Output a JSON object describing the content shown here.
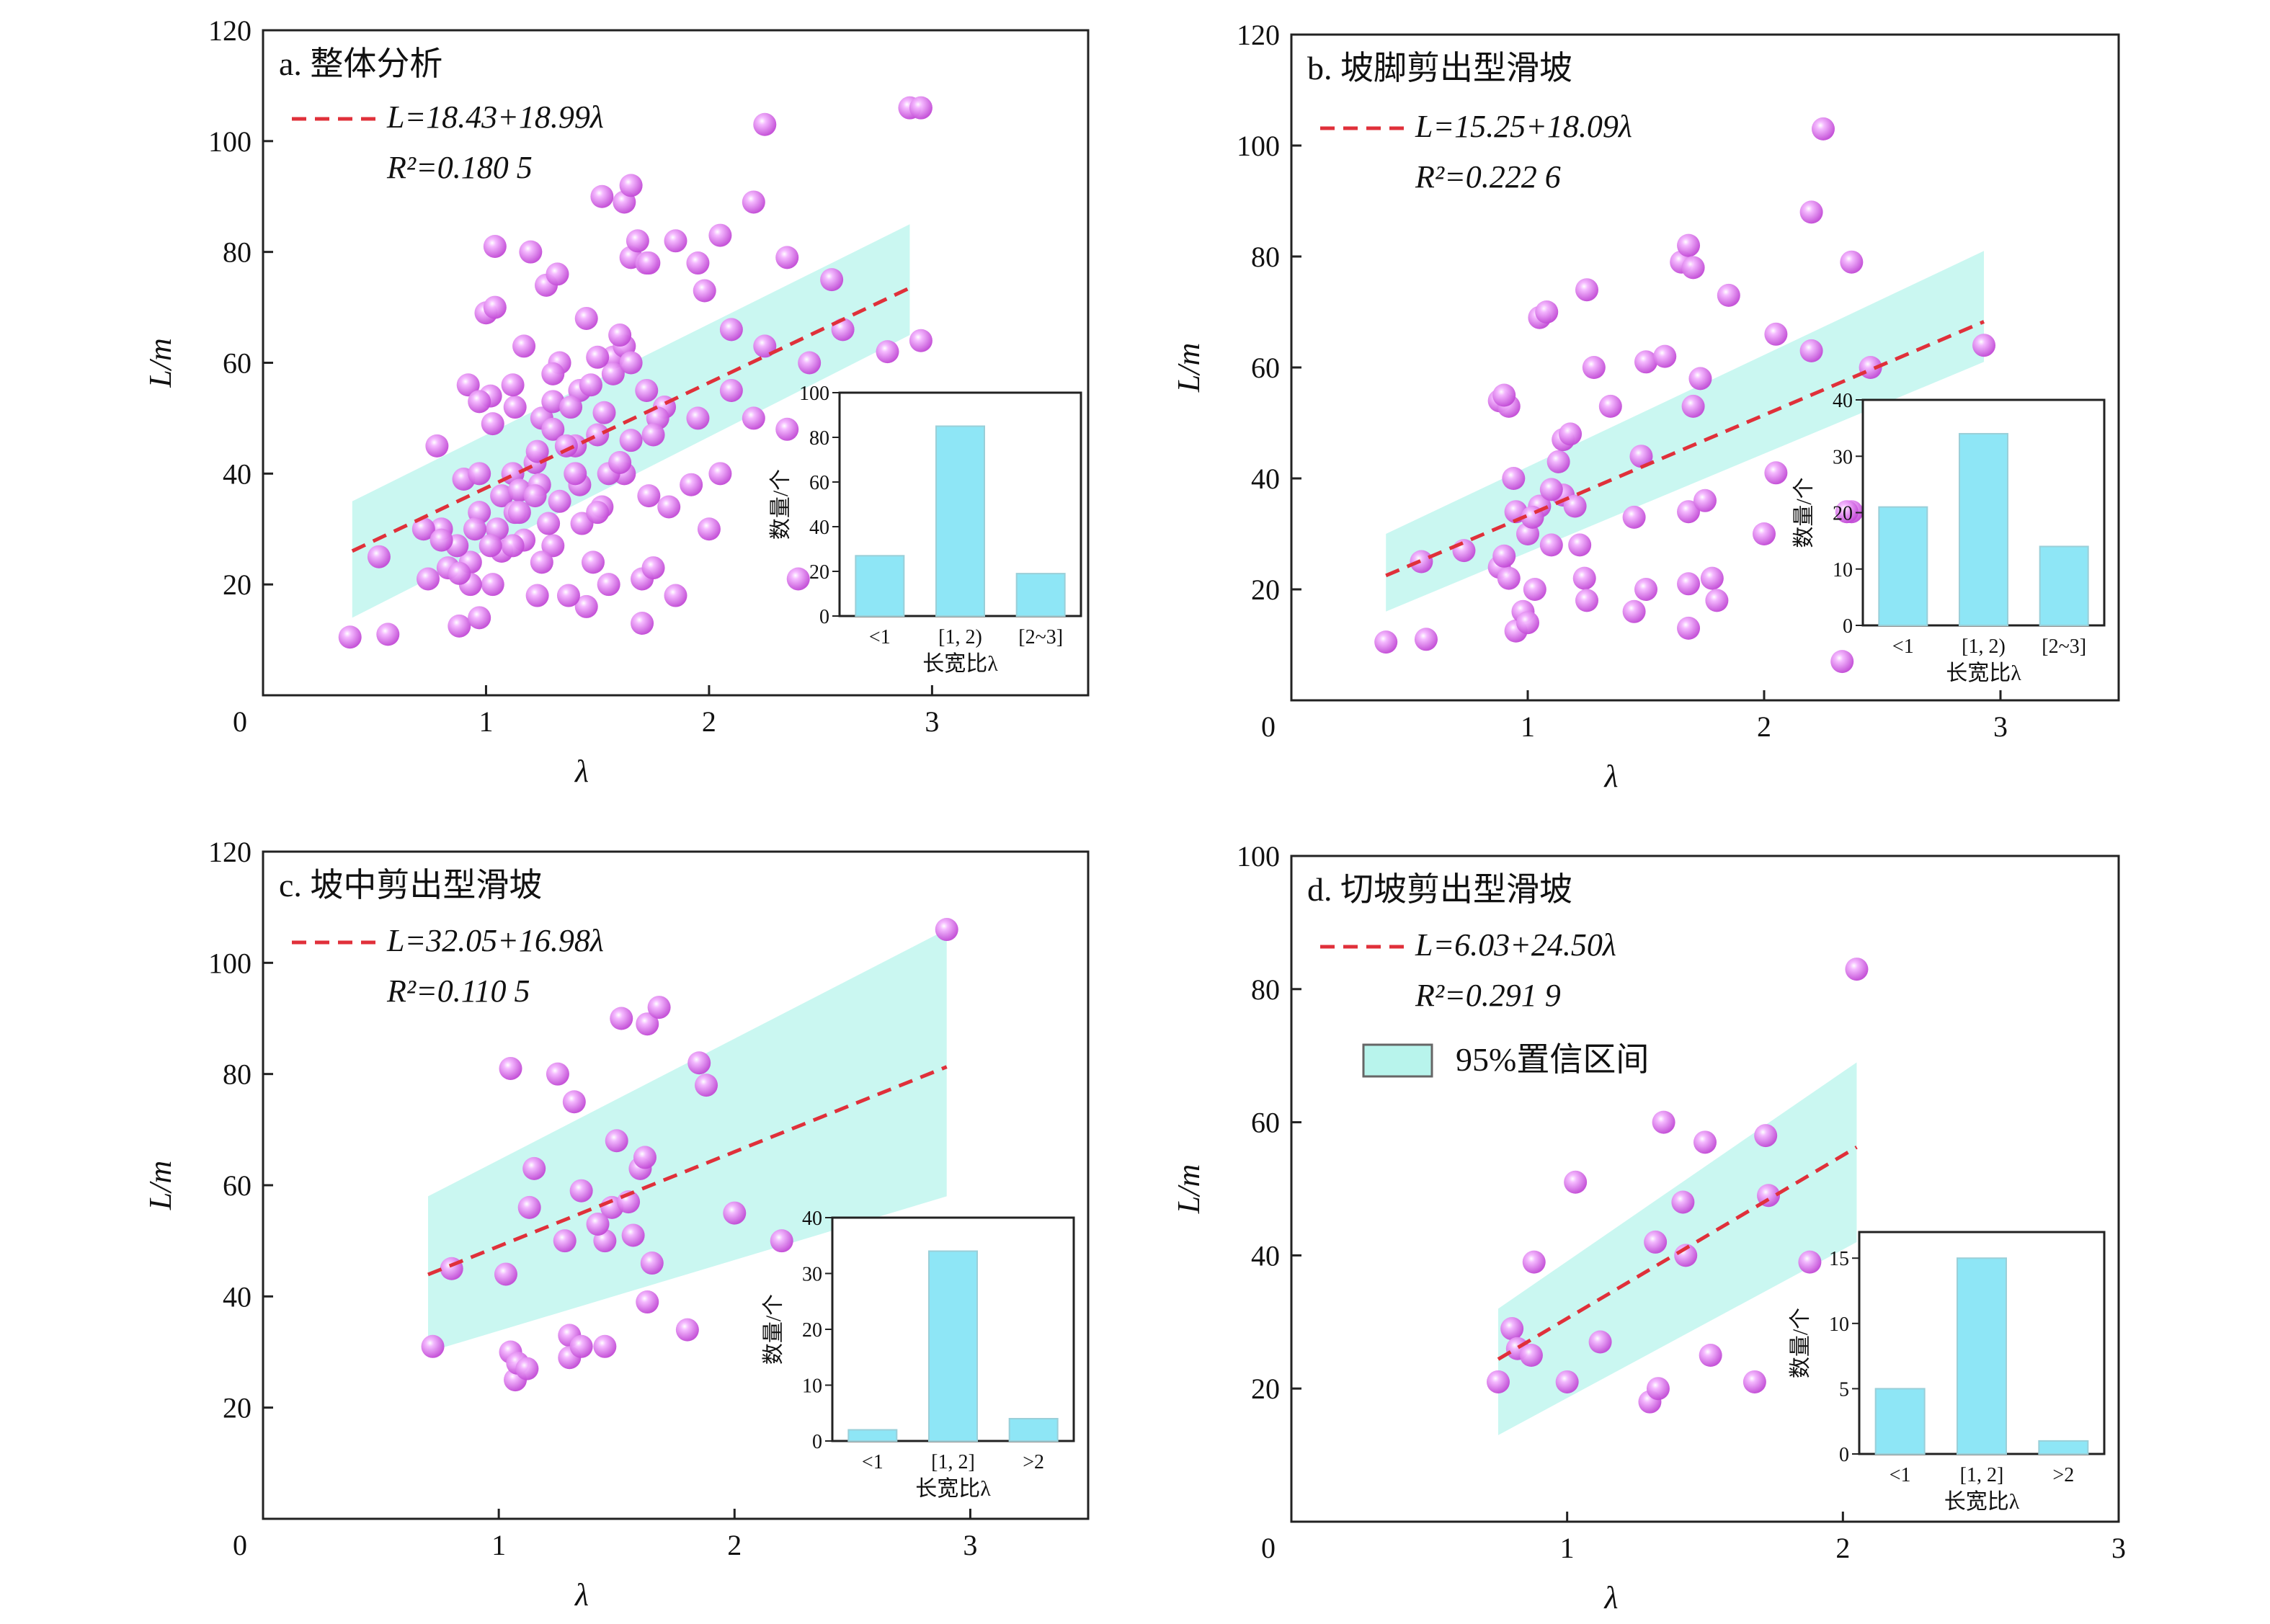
{
  "colors": {
    "point": "#e070f0",
    "point_highlight": "#f7d9ff",
    "fit_line": "#e0303a",
    "band": "#b8f4ec",
    "bar": "#8ee6f6",
    "axis": "#222222"
  },
  "legend": {
    "band_label": "95%置信区间"
  },
  "chart_data": [
    {
      "type": "scatter",
      "title": "a. 整体分析",
      "xlabel": "λ",
      "ylabel": "L/m",
      "xlim": [
        0,
        3.7
      ],
      "ylim": [
        0,
        120
      ],
      "xticks": [
        1,
        2,
        3
      ],
      "yticks": [
        20,
        40,
        60,
        80,
        100,
        120
      ],
      "origin_label": "0",
      "fit": {
        "intercept": 18.43,
        "slope": 18.99,
        "r2": "0.180 5",
        "eq_text": "L=18.43+18.99λ",
        "r2_text": "R²=0.180 5",
        "x_range": [
          0.4,
          2.9
        ]
      },
      "band": {
        "x_range": [
          0.4,
          2.9
        ],
        "lower": [
          14,
          65
        ],
        "upper": [
          35,
          85
        ]
      },
      "points": [
        [
          0.39,
          10.5
        ],
        [
          0.56,
          11
        ],
        [
          0.52,
          25
        ],
        [
          0.88,
          12.5
        ],
        [
          0.97,
          14
        ],
        [
          0.74,
          21
        ],
        [
          0.83,
          23
        ],
        [
          0.93,
          24
        ],
        [
          1.03,
          20
        ],
        [
          0.8,
          30
        ],
        [
          0.87,
          27
        ],
        [
          0.97,
          33
        ],
        [
          1.07,
          26
        ],
        [
          1.17,
          28
        ],
        [
          0.72,
          30
        ],
        [
          0.9,
          39
        ],
        [
          0.97,
          40
        ],
        [
          1.12,
          40
        ],
        [
          1.22,
          42
        ],
        [
          0.78,
          45
        ],
        [
          1.03,
          49
        ],
        [
          1.13,
          52
        ],
        [
          0.92,
          56
        ],
        [
          1.02,
          54
        ],
        [
          0.97,
          53
        ],
        [
          1.12,
          56
        ],
        [
          1.25,
          50
        ],
        [
          1.3,
          53
        ],
        [
          1.42,
          55
        ],
        [
          1.53,
          51
        ],
        [
          1.47,
          56
        ],
        [
          1.57,
          61
        ],
        [
          1.62,
          63
        ],
        [
          1.57,
          58
        ],
        [
          1.65,
          60
        ],
        [
          1.33,
          60
        ],
        [
          1.17,
          63
        ],
        [
          1.45,
          68
        ],
        [
          1.6,
          65
        ],
        [
          1.27,
          74
        ],
        [
          1.32,
          76
        ],
        [
          1.0,
          69
        ],
        [
          1.04,
          70
        ],
        [
          1.04,
          81
        ],
        [
          1.2,
          80
        ],
        [
          1.65,
          79
        ],
        [
          1.72,
          78
        ],
        [
          1.68,
          82
        ],
        [
          1.73,
          78
        ],
        [
          1.85,
          82
        ],
        [
          1.98,
          73
        ],
        [
          1.95,
          78
        ],
        [
          2.05,
          83
        ],
        [
          2.35,
          79
        ],
        [
          2.2,
          89
        ],
        [
          1.52,
          90
        ],
        [
          1.62,
          89
        ],
        [
          1.65,
          92
        ],
        [
          2.25,
          103
        ],
        [
          2.9,
          106
        ],
        [
          1.07,
          36
        ],
        [
          1.15,
          37
        ],
        [
          1.24,
          38
        ],
        [
          1.33,
          35
        ],
        [
          1.42,
          38
        ],
        [
          1.52,
          34
        ],
        [
          1.62,
          40
        ],
        [
          1.73,
          36
        ],
        [
          1.82,
          34
        ],
        [
          1.92,
          38
        ],
        [
          2.05,
          40
        ],
        [
          1.23,
          44
        ],
        [
          1.3,
          48
        ],
        [
          1.4,
          45
        ],
        [
          1.5,
          47
        ],
        [
          1.65,
          46
        ],
        [
          1.8,
          52
        ],
        [
          1.95,
          50
        ],
        [
          2.1,
          55
        ],
        [
          2.2,
          50
        ],
        [
          2.35,
          48
        ],
        [
          2.45,
          60
        ],
        [
          2.6,
          66
        ],
        [
          2.8,
          62
        ],
        [
          2.95,
          64
        ],
        [
          2.0,
          30
        ],
        [
          2.4,
          21
        ],
        [
          2.55,
          75
        ],
        [
          1.45,
          16
        ],
        [
          1.37,
          18
        ],
        [
          1.23,
          18
        ],
        [
          1.55,
          20
        ],
        [
          1.7,
          21
        ],
        [
          1.75,
          23
        ],
        [
          1.85,
          18
        ],
        [
          1.7,
          13
        ],
        [
          1.48,
          24
        ],
        [
          1.3,
          27
        ],
        [
          1.25,
          24
        ],
        [
          1.12,
          27
        ],
        [
          1.05,
          30
        ],
        [
          1.13,
          33
        ],
        [
          1.22,
          36
        ],
        [
          1.4,
          40
        ],
        [
          0.93,
          20
        ],
        [
          0.88,
          22
        ],
        [
          1.02,
          27
        ],
        [
          0.95,
          30
        ],
        [
          1.15,
          33
        ],
        [
          1.28,
          31
        ],
        [
          1.36,
          45
        ],
        [
          1.43,
          31
        ],
        [
          1.5,
          33
        ],
        [
          1.55,
          40
        ],
        [
          1.77,
          50
        ],
        [
          1.3,
          58
        ],
        [
          1.38,
          52
        ],
        [
          1.5,
          61
        ],
        [
          1.72,
          55
        ],
        [
          2.1,
          66
        ],
        [
          2.25,
          63
        ],
        [
          1.6,
          42
        ],
        [
          1.75,
          47
        ],
        [
          0.8,
          28
        ],
        [
          2.95,
          106
        ]
      ]
    },
    {
      "type": "scatter",
      "title": "b. 坡脚剪出型滑坡",
      "xlabel": "λ",
      "ylabel": "L/m",
      "xlim": [
        0,
        3.5
      ],
      "ylim": [
        0,
        120
      ],
      "xticks": [
        1,
        2,
        3
      ],
      "yticks": [
        20,
        40,
        60,
        80,
        100,
        120
      ],
      "origin_label": "0",
      "fit": {
        "intercept": 15.25,
        "slope": 18.09,
        "r2": "0.222 6",
        "eq_text": "L=15.25+18.09λ",
        "r2_text": "R²=0.222 6",
        "x_range": [
          0.4,
          2.93
        ]
      },
      "band": {
        "x_range": [
          0.4,
          2.93
        ],
        "lower": [
          16,
          61
        ],
        "upper": [
          30,
          81
        ]
      },
      "points": [
        [
          0.4,
          10.5
        ],
        [
          0.57,
          11
        ],
        [
          0.55,
          25
        ],
        [
          0.73,
          27
        ],
        [
          0.88,
          24
        ],
        [
          0.92,
          22
        ],
        [
          0.95,
          12.5
        ],
        [
          0.98,
          16
        ],
        [
          1.0,
          14
        ],
        [
          1.03,
          20
        ],
        [
          0.9,
          26
        ],
        [
          0.95,
          34
        ],
        [
          1.0,
          30
        ],
        [
          1.05,
          35
        ],
        [
          1.1,
          28
        ],
        [
          1.15,
          37
        ],
        [
          1.2,
          35
        ],
        [
          1.22,
          28
        ],
        [
          1.24,
          22
        ],
        [
          0.94,
          40
        ],
        [
          1.13,
          43
        ],
        [
          1.15,
          47
        ],
        [
          0.88,
          54
        ],
        [
          0.92,
          53
        ],
        [
          0.9,
          55
        ],
        [
          1.05,
          69
        ],
        [
          1.08,
          70
        ],
        [
          1.25,
          74
        ],
        [
          1.35,
          53
        ],
        [
          1.5,
          61
        ],
        [
          1.58,
          62
        ],
        [
          1.7,
          53
        ],
        [
          1.73,
          58
        ],
        [
          1.65,
          79
        ],
        [
          1.68,
          82
        ],
        [
          1.7,
          78
        ],
        [
          1.85,
          73
        ],
        [
          2.05,
          66
        ],
        [
          2.2,
          63
        ],
        [
          2.2,
          88
        ],
        [
          2.25,
          103
        ],
        [
          2.37,
          79
        ],
        [
          2.45,
          60
        ],
        [
          2.37,
          34
        ],
        [
          2.33,
          7
        ],
        [
          2.35,
          34
        ],
        [
          2.93,
          64
        ],
        [
          1.5,
          20
        ],
        [
          1.45,
          16
        ],
        [
          1.25,
          18
        ],
        [
          1.68,
          21
        ],
        [
          1.78,
          22
        ],
        [
          1.8,
          18
        ],
        [
          1.68,
          13
        ],
        [
          1.45,
          33
        ],
        [
          1.48,
          44
        ],
        [
          1.68,
          34
        ],
        [
          1.75,
          36
        ],
        [
          2.0,
          30
        ],
        [
          2.05,
          41
        ],
        [
          1.28,
          60
        ],
        [
          1.02,
          33
        ],
        [
          1.1,
          38
        ],
        [
          1.18,
          48
        ]
      ]
    },
    {
      "type": "scatter",
      "title": "c. 坡中剪出型滑坡",
      "xlabel": "λ",
      "ylabel": "L/m",
      "xlim": [
        0,
        3.5
      ],
      "ylim": [
        0,
        120
      ],
      "xticks": [
        1,
        2,
        3
      ],
      "yticks": [
        20,
        40,
        60,
        80,
        100,
        120
      ],
      "origin_label": "0",
      "fit": {
        "intercept": 32.05,
        "slope": 16.98,
        "r2": "0.110 5",
        "eq_text": "L=32.05+16.98λ",
        "r2_text": "R²=0.110 5",
        "x_range": [
          0.7,
          2.9
        ]
      },
      "band": {
        "x_range": [
          0.7,
          2.9
        ],
        "lower": [
          30,
          58
        ],
        "upper": [
          58,
          106
        ]
      },
      "points": [
        [
          0.72,
          31
        ],
        [
          0.8,
          45
        ],
        [
          1.03,
          44
        ],
        [
          1.05,
          30
        ],
        [
          1.07,
          25
        ],
        [
          1.08,
          28
        ],
        [
          1.12,
          27
        ],
        [
          1.05,
          81
        ],
        [
          1.15,
          63
        ],
        [
          1.13,
          56
        ],
        [
          1.25,
          80
        ],
        [
          1.3,
          33
        ],
        [
          1.3,
          29
        ],
        [
          1.35,
          31
        ],
        [
          1.28,
          50
        ],
        [
          1.32,
          75
        ],
        [
          1.35,
          59
        ],
        [
          1.45,
          50
        ],
        [
          1.45,
          31
        ],
        [
          1.48,
          56
        ],
        [
          1.5,
          68
        ],
        [
          1.52,
          90
        ],
        [
          1.57,
          51
        ],
        [
          1.6,
          63
        ],
        [
          1.62,
          65
        ],
        [
          1.63,
          89
        ],
        [
          1.65,
          46
        ],
        [
          1.63,
          39
        ],
        [
          1.68,
          92
        ],
        [
          1.8,
          34
        ],
        [
          1.85,
          82
        ],
        [
          1.88,
          78
        ],
        [
          2.0,
          55
        ],
        [
          2.2,
          50
        ],
        [
          2.9,
          106
        ],
        [
          1.55,
          57
        ],
        [
          1.42,
          53
        ]
      ]
    },
    {
      "type": "scatter",
      "title": "d. 切坡剪出型滑坡",
      "xlabel": "λ",
      "ylabel": "L/m",
      "xlim": [
        0,
        3
      ],
      "ylim": [
        0,
        100
      ],
      "xticks": [
        1,
        2,
        3
      ],
      "yticks": [
        20,
        40,
        60,
        80,
        100
      ],
      "origin_label": "0",
      "fit": {
        "intercept": 6.03,
        "slope": 24.5,
        "r2": "0.291 9",
        "eq_text": "L=6.03+24.50λ",
        "r2_text": "R²=0.291 9",
        "x_range": [
          0.75,
          2.05
        ]
      },
      "band": {
        "x_range": [
          0.75,
          2.05
        ],
        "lower": [
          13,
          42
        ],
        "upper": [
          32,
          69
        ]
      },
      "points": [
        [
          0.75,
          21
        ],
        [
          0.8,
          29
        ],
        [
          0.82,
          26
        ],
        [
          0.87,
          25
        ],
        [
          0.88,
          39
        ],
        [
          1.0,
          21
        ],
        [
          1.03,
          51
        ],
        [
          1.12,
          27
        ],
        [
          1.32,
          42
        ],
        [
          1.3,
          18
        ],
        [
          1.33,
          20
        ],
        [
          1.35,
          60
        ],
        [
          1.42,
          48
        ],
        [
          1.43,
          40
        ],
        [
          1.5,
          57
        ],
        [
          1.52,
          25
        ],
        [
          1.68,
          21
        ],
        [
          1.72,
          58
        ],
        [
          1.73,
          49
        ],
        [
          1.88,
          39
        ],
        [
          2.05,
          83
        ]
      ]
    }
  ],
  "insets": [
    {
      "type": "bar",
      "categories": [
        "<1",
        "[1, 2)",
        "[2~3]"
      ],
      "values": [
        27,
        85,
        19
      ],
      "ylim": [
        0,
        100
      ],
      "yticks": [
        0,
        20,
        40,
        60,
        80,
        100
      ],
      "xlabel": "长宽比λ",
      "ylabel": "数量/个"
    },
    {
      "type": "bar",
      "categories": [
        "<1",
        "[1, 2)",
        "[2~3]"
      ],
      "values": [
        21,
        34,
        14
      ],
      "ylim": [
        0,
        40
      ],
      "yticks": [
        0,
        10,
        20,
        30,
        40
      ],
      "xlabel": "长宽比λ",
      "ylabel": "数量/个"
    },
    {
      "type": "bar",
      "categories": [
        "<1",
        "[1, 2]",
        ">2"
      ],
      "values": [
        2,
        34,
        4
      ],
      "ylim": [
        0,
        40
      ],
      "yticks": [
        0,
        10,
        20,
        30,
        40
      ],
      "xlabel": "长宽比λ",
      "ylabel": "数量/个"
    },
    {
      "type": "bar",
      "categories": [
        "<1",
        "[1, 2]",
        ">2"
      ],
      "values": [
        5,
        15,
        1
      ],
      "ylim": [
        0,
        17
      ],
      "yticks": [
        0,
        5,
        10,
        15
      ],
      "xlabel": "长宽比λ",
      "ylabel": "数量/个"
    }
  ]
}
